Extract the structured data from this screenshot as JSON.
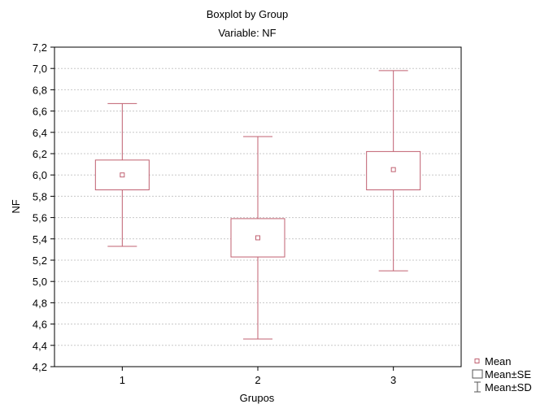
{
  "chart_data": {
    "type": "boxplot",
    "title": "Boxplot by Group",
    "subtitle": "Variable: NF",
    "xlabel": "Grupos",
    "ylabel": "NF",
    "categories": [
      "1",
      "2",
      "3"
    ],
    "ylim": [
      4.2,
      7.2
    ],
    "yticks": [
      "4,2",
      "4,4",
      "4,6",
      "4,8",
      "5,0",
      "5,2",
      "5,4",
      "5,6",
      "5,8",
      "6,0",
      "6,2",
      "6,4",
      "6,6",
      "6,8",
      "7,0",
      "7,2"
    ],
    "yvalues": [
      4.2,
      4.4,
      4.6,
      4.8,
      5.0,
      5.2,
      5.4,
      5.6,
      5.8,
      6.0,
      6.2,
      6.4,
      6.6,
      6.8,
      7.0,
      7.2
    ],
    "grid": true,
    "legend_position": "bottom-right",
    "series_color": "#c06070",
    "boxes": [
      {
        "group": "1",
        "mean": 6.0,
        "se_low": 5.86,
        "se_high": 6.14,
        "sd_low": 5.33,
        "sd_high": 6.67
      },
      {
        "group": "2",
        "mean": 5.41,
        "se_low": 5.23,
        "se_high": 5.59,
        "sd_low": 4.46,
        "sd_high": 6.36
      },
      {
        "group": "3",
        "mean": 6.05,
        "se_low": 5.86,
        "se_high": 6.22,
        "sd_low": 5.1,
        "sd_high": 6.98
      }
    ],
    "legend": [
      {
        "label": "Mean",
        "symbol": "square-point"
      },
      {
        "label": "Mean±SE",
        "symbol": "box"
      },
      {
        "label": "Mean±SD",
        "symbol": "whisker"
      }
    ]
  }
}
